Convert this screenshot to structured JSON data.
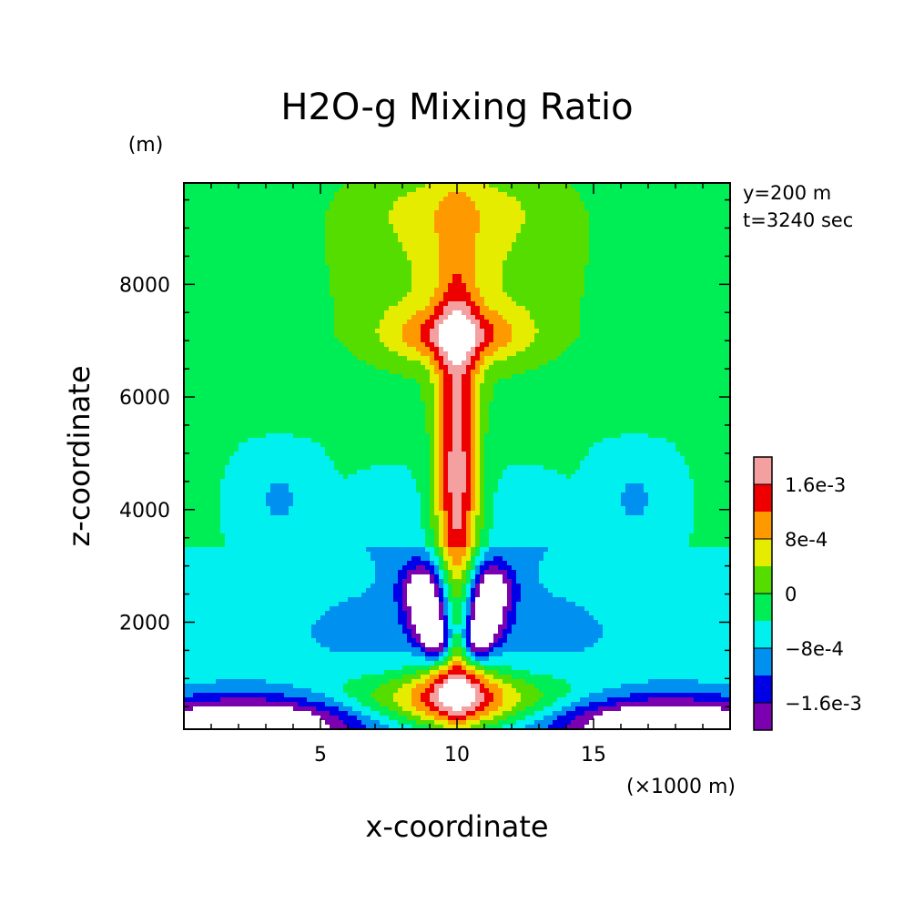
{
  "chart_data": {
    "type": "heatmap",
    "title": "H2O-g Mixing Ratio",
    "xlabel": "x-coordinate",
    "ylabel": "z-coordinate",
    "x_unit": "(×1000 m)",
    "y_unit": "(m)",
    "annotations": [
      "y=200 m",
      "t=3240 sec"
    ],
    "x_range": [
      0,
      20
    ],
    "y_range": [
      100,
      9800
    ],
    "x_ticks": [
      5,
      10,
      15
    ],
    "y_ticks": [
      2000,
      4000,
      6000,
      8000
    ],
    "colorbar": {
      "levels": [
        {
          "min": 0.0016,
          "color": "#f4a0a0"
        },
        {
          "min": 0.0012,
          "color": "#ee0000"
        },
        {
          "min": 0.0008,
          "color": "#ff9900"
        },
        {
          "min": 0.0004,
          "color": "#e6ec00"
        },
        {
          "min": 0.0,
          "color": "#55dd00"
        },
        {
          "min": -0.0004,
          "color": "#00ee55"
        },
        {
          "min": -0.0008,
          "color": "#00f0f0"
        },
        {
          "min": -0.0012,
          "color": "#0090f0"
        },
        {
          "min": -0.0016,
          "color": "#0000e6"
        },
        {
          "min": -0.002,
          "color": "#7a00b0"
        }
      ],
      "tick_labels": [
        "1.6e-3",
        "8e-4",
        "0",
        "-8e-4",
        "-1.6e-3"
      ],
      "tick_values": [
        0.0016,
        0.0008,
        0.0,
        -0.0008,
        -0.0016
      ]
    }
  }
}
